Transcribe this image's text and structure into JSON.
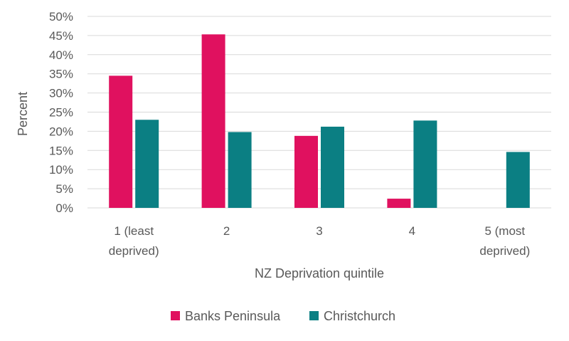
{
  "chart_data": {
    "type": "bar",
    "title": "",
    "xlabel": "NZ Deprivation quintile",
    "ylabel": "Percent",
    "categories": [
      [
        "1 (least",
        "deprived)"
      ],
      [
        "2"
      ],
      [
        "3"
      ],
      [
        "4"
      ],
      [
        "5 (most",
        "deprived)"
      ]
    ],
    "series": [
      {
        "name": "Banks Peninsula",
        "color": "#e0115f",
        "values": [
          34.5,
          45.3,
          18.8,
          2.4,
          0
        ]
      },
      {
        "name": "Christchurch",
        "color": "#0b7f83",
        "values": [
          23.0,
          19.8,
          21.2,
          22.8,
          14.6
        ]
      }
    ],
    "ylim": [
      0,
      50
    ],
    "yticks": [
      0,
      5,
      10,
      15,
      20,
      25,
      30,
      35,
      40,
      45,
      50
    ],
    "ytick_suffix": "%",
    "grid": true,
    "legend": "bottom"
  }
}
